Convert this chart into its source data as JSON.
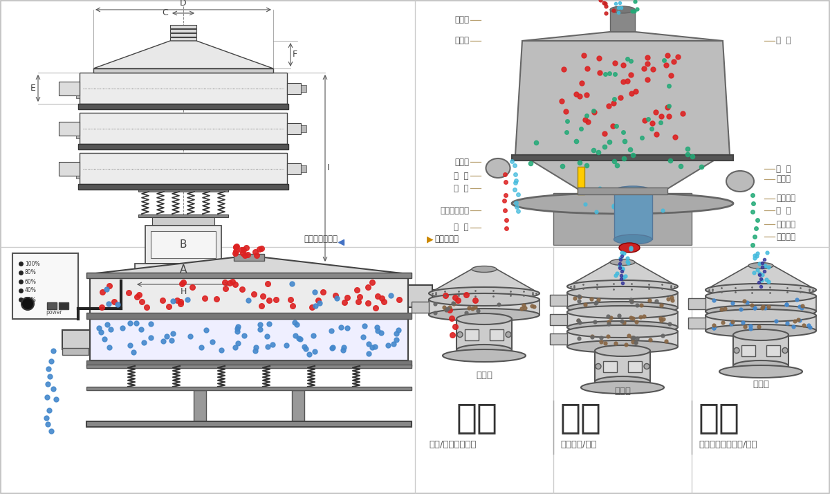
{
  "bg_color": "#ffffff",
  "border_color": "#cccccc",
  "dim_labels": [
    "A",
    "B",
    "C",
    "D",
    "E",
    "F",
    "H",
    "I"
  ],
  "structure_labels_left": [
    "进料口",
    "防尘盖",
    "出料口",
    "束  环",
    "弹  簧",
    "运输固定螺栓",
    "机  座"
  ],
  "structure_labels_right": [
    "筛  网",
    "网  架",
    "加重块",
    "上部重锤",
    "筛  盘",
    "振动电机",
    "下部重锤"
  ],
  "bottom_left_title": "分级",
  "bottom_mid_title": "过滤",
  "bottom_right_title": "除杂",
  "bottom_left_sub": "颗粒/粉末准确分级",
  "bottom_mid_sub": "去除异物/结块",
  "bottom_right_sub": "去除液体中的颗粒/异物",
  "bottom_left_small": "单层式",
  "bottom_mid_small": "三层式",
  "bottom_right_small": "双层式",
  "tag_left": "外形尺寸示意图",
  "tag_right": "结构示意图",
  "red_color": "#dd2222",
  "blue_color": "#4488cc",
  "brown_color": "#996633",
  "cyan_color": "#44bbdd",
  "label_line_color": "#b8a070",
  "label_text_color": "#555555"
}
